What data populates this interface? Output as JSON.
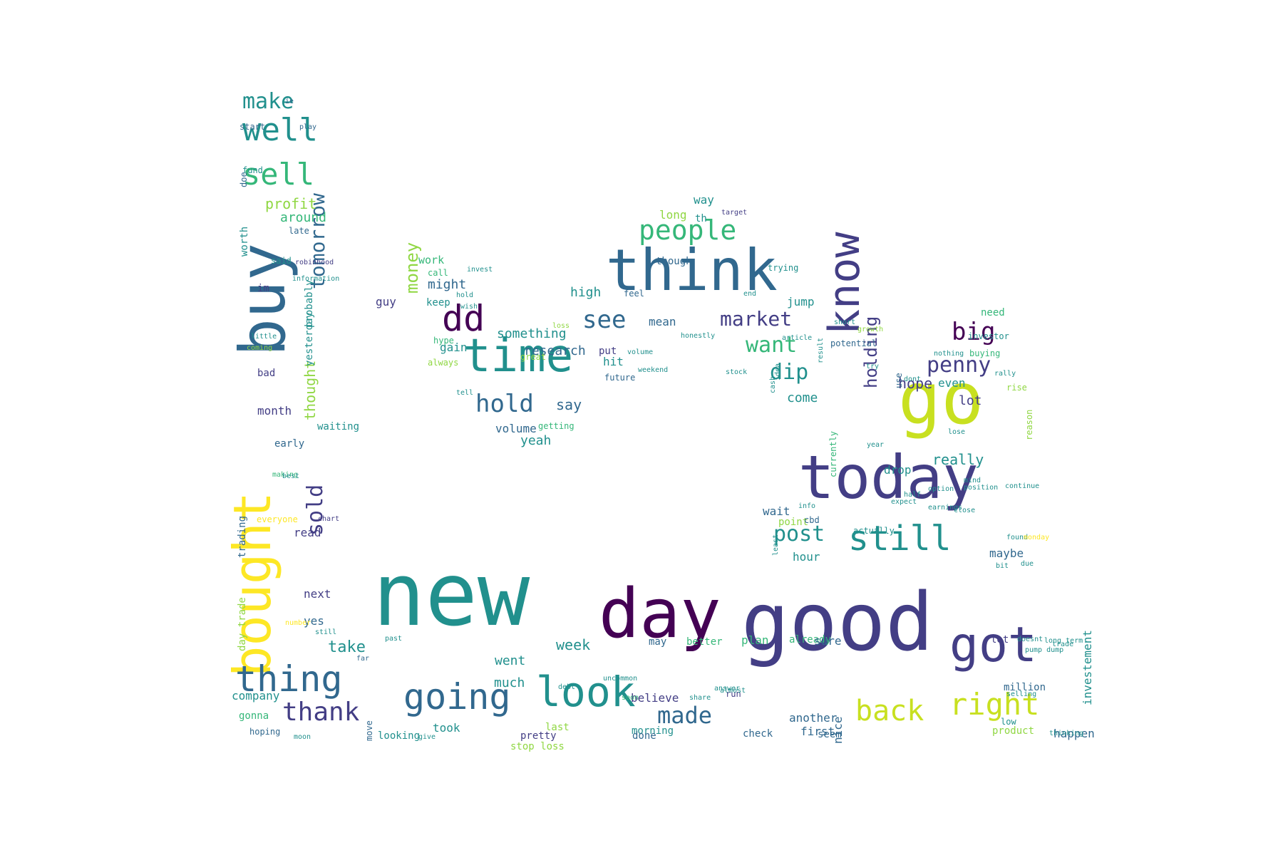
{
  "palette": {
    "dark_purple": "#440154",
    "indigo": "#433e85",
    "blue": "#31688e",
    "teal": "#21908d",
    "green": "#35b779",
    "light_green": "#90d743",
    "yellow": "#fde725",
    "lime": "#c8e020"
  },
  "words": [
    {
      "text": "new",
      "color": "teal"
    },
    {
      "text": "good",
      "color": "indigo"
    },
    {
      "text": "day",
      "color": "dark_purple"
    },
    {
      "text": "think",
      "color": "blue"
    },
    {
      "text": "go",
      "color": "lime"
    },
    {
      "text": "today",
      "color": "indigo"
    },
    {
      "text": "buy",
      "color": "blue"
    },
    {
      "text": "bought",
      "color": "yellow"
    },
    {
      "text": "time",
      "color": "teal"
    },
    {
      "text": "know",
      "color": "indigo"
    },
    {
      "text": "got",
      "color": "indigo"
    },
    {
      "text": "look",
      "color": "teal"
    },
    {
      "text": "dd",
      "color": "dark_purple"
    },
    {
      "text": "right",
      "color": "lime"
    },
    {
      "text": "back",
      "color": "lime"
    },
    {
      "text": "thing",
      "color": "blue"
    },
    {
      "text": "going",
      "color": "blue"
    },
    {
      "text": "still",
      "color": "teal"
    },
    {
      "text": "people",
      "color": "green"
    },
    {
      "text": "well",
      "color": "teal"
    },
    {
      "text": "sell",
      "color": "green"
    },
    {
      "text": "thank",
      "color": "indigo"
    },
    {
      "text": "made",
      "color": "blue"
    },
    {
      "text": "market",
      "color": "indigo"
    },
    {
      "text": "see",
      "color": "blue"
    },
    {
      "text": "hold",
      "color": "blue"
    },
    {
      "text": "tomorrow",
      "color": "blue"
    },
    {
      "text": "dip",
      "color": "teal"
    },
    {
      "text": "post",
      "color": "teal"
    },
    {
      "text": "big",
      "color": "dark_purple"
    },
    {
      "text": "penny",
      "color": "indigo"
    },
    {
      "text": "want",
      "color": "green"
    },
    {
      "text": "make",
      "color": "teal"
    },
    {
      "text": "money",
      "color": "light_green"
    },
    {
      "text": "sold",
      "color": "indigo"
    },
    {
      "text": "holding",
      "color": "indigo"
    },
    {
      "text": "profit",
      "color": "light_green"
    },
    {
      "text": "really",
      "color": "teal"
    },
    {
      "text": "week",
      "color": "teal"
    },
    {
      "text": "take",
      "color": "teal"
    },
    {
      "text": "hope",
      "color": "indigo"
    },
    {
      "text": "thought",
      "color": "light_green"
    },
    {
      "text": "lot",
      "color": "indigo"
    },
    {
      "text": "around",
      "color": "green"
    },
    {
      "text": "say",
      "color": "blue"
    },
    {
      "text": "yeah",
      "color": "teal"
    },
    {
      "text": "might",
      "color": "blue"
    },
    {
      "text": "something",
      "color": "teal"
    },
    {
      "text": "research",
      "color": "blue"
    },
    {
      "text": "much",
      "color": "teal"
    },
    {
      "text": "went",
      "color": "teal"
    },
    {
      "text": "come",
      "color": "teal"
    },
    {
      "text": "high",
      "color": "teal"
    },
    {
      "text": "guy",
      "color": "indigo"
    },
    {
      "text": "keep",
      "color": "teal"
    },
    {
      "text": "work",
      "color": "green"
    },
    {
      "text": "way",
      "color": "teal"
    },
    {
      "text": "long",
      "color": "light_green"
    },
    {
      "text": "th",
      "color": "teal"
    },
    {
      "text": "though",
      "color": "blue"
    },
    {
      "text": "jump",
      "color": "teal"
    },
    {
      "text": "mean",
      "color": "blue"
    },
    {
      "text": "gain",
      "color": "teal"
    },
    {
      "text": "hit",
      "color": "teal"
    },
    {
      "text": "put",
      "color": "indigo"
    },
    {
      "text": "volume",
      "color": "blue"
    },
    {
      "text": "even",
      "color": "teal"
    },
    {
      "text": "drop",
      "color": "teal"
    },
    {
      "text": "wait",
      "color": "blue"
    },
    {
      "text": "point",
      "color": "light_green"
    },
    {
      "text": "hour",
      "color": "teal"
    },
    {
      "text": "maybe",
      "color": "blue"
    },
    {
      "text": "read",
      "color": "indigo"
    },
    {
      "text": "next",
      "color": "indigo"
    },
    {
      "text": "yes",
      "color": "blue"
    },
    {
      "text": "month",
      "color": "indigo"
    },
    {
      "text": "bad",
      "color": "indigo"
    },
    {
      "text": "im",
      "color": "indigo"
    },
    {
      "text": "said",
      "color": "teal"
    },
    {
      "text": "late",
      "color": "blue"
    },
    {
      "text": "worth",
      "color": "teal"
    },
    {
      "text": "probably",
      "color": "teal"
    },
    {
      "text": "yesterday",
      "color": "teal"
    },
    {
      "text": "waiting",
      "color": "teal"
    },
    {
      "text": "early",
      "color": "blue"
    },
    {
      "text": "trading",
      "color": "blue"
    },
    {
      "text": "day trade",
      "color": "light_green"
    },
    {
      "text": "company",
      "color": "teal"
    },
    {
      "text": "gonna",
      "color": "green"
    },
    {
      "text": "hoping",
      "color": "blue"
    },
    {
      "text": "took",
      "color": "teal"
    },
    {
      "text": "looking",
      "color": "teal"
    },
    {
      "text": "believe",
      "color": "indigo"
    },
    {
      "text": "morning",
      "color": "teal"
    },
    {
      "text": "may",
      "color": "blue"
    },
    {
      "text": "better",
      "color": "green"
    },
    {
      "text": "plan",
      "color": "green"
    },
    {
      "text": "already",
      "color": "green"
    },
    {
      "text": "sure",
      "color": "blue"
    },
    {
      "text": "another",
      "color": "blue"
    },
    {
      "text": "first",
      "color": "blue"
    },
    {
      "text": "seem",
      "color": "blue"
    },
    {
      "text": "check",
      "color": "blue"
    },
    {
      "text": "nice",
      "color": "blue"
    },
    {
      "text": "run",
      "color": "indigo"
    },
    {
      "text": "done",
      "color": "blue"
    },
    {
      "text": "pretty",
      "color": "indigo"
    },
    {
      "text": "stop loss",
      "color": "light_green"
    },
    {
      "text": "last",
      "color": "light_green"
    },
    {
      "text": "let",
      "color": "indigo"
    },
    {
      "text": "million",
      "color": "blue"
    },
    {
      "text": "investement",
      "color": "teal"
    },
    {
      "text": "product",
      "color": "light_green"
    },
    {
      "text": "happen",
      "color": "blue"
    },
    {
      "text": "need",
      "color": "green"
    },
    {
      "text": "buying",
      "color": "green"
    },
    {
      "text": "investor",
      "color": "teal"
    },
    {
      "text": "use",
      "color": "blue"
    },
    {
      "text": "currently",
      "color": "green"
    },
    {
      "text": "actually",
      "color": "teal"
    },
    {
      "text": "cbd",
      "color": "blue"
    },
    {
      "text": "doe",
      "color": "blue"
    },
    {
      "text": "fund",
      "color": "teal"
    },
    {
      "text": "start",
      "color": "blue"
    },
    {
      "text": "everyone",
      "color": "yellow"
    },
    {
      "text": "call",
      "color": "green"
    },
    {
      "text": "future",
      "color": "blue"
    },
    {
      "text": "hype",
      "color": "green"
    },
    {
      "text": "always",
      "color": "light_green"
    },
    {
      "text": "getting",
      "color": "green"
    },
    {
      "text": "feel",
      "color": "blue"
    },
    {
      "text": "trying",
      "color": "teal"
    },
    {
      "text": "far",
      "color": "blue"
    },
    {
      "text": "move",
      "color": "blue"
    },
    {
      "text": "reason",
      "color": "light_green"
    },
    {
      "text": "rise",
      "color": "light_green"
    },
    {
      "text": "potential",
      "color": "blue"
    },
    {
      "text": "great",
      "color": "light_green"
    },
    {
      "text": "low",
      "color": "teal"
    },
    {
      "text": "ie",
      "color": "blue"
    },
    {
      "text": "play",
      "color": "blue"
    },
    {
      "text": "loss",
      "color": "light_green"
    },
    {
      "text": "invest",
      "color": "teal"
    },
    {
      "text": "information",
      "color": "teal"
    },
    {
      "text": "robinhood",
      "color": "indigo"
    },
    {
      "text": "little",
      "color": "teal"
    },
    {
      "text": "coming",
      "color": "light_green"
    },
    {
      "text": "making",
      "color": "green"
    },
    {
      "text": "best",
      "color": "teal"
    },
    {
      "text": "target",
      "color": "indigo"
    },
    {
      "text": "chart",
      "color": "indigo"
    },
    {
      "text": "number",
      "color": "yellow"
    },
    {
      "text": "still",
      "color": "teal"
    },
    {
      "text": "past",
      "color": "teal"
    },
    {
      "text": "debt",
      "color": "teal"
    },
    {
      "text": "soon",
      "color": "green"
    },
    {
      "text": "moon",
      "color": "teal"
    },
    {
      "text": "give",
      "color": "teal"
    },
    {
      "text": "selling",
      "color": "teal"
    },
    {
      "text": "thinking",
      "color": "teal"
    },
    {
      "text": "trade",
      "color": "teal"
    },
    {
      "text": "pump dump",
      "color": "teal"
    },
    {
      "text": "doesnt",
      "color": "teal"
    },
    {
      "text": "long term",
      "color": "teal"
    },
    {
      "text": "found",
      "color": "teal"
    },
    {
      "text": "monday",
      "color": "yellow"
    },
    {
      "text": "due",
      "color": "teal"
    },
    {
      "text": "bit",
      "color": "teal"
    },
    {
      "text": "continue",
      "color": "teal"
    },
    {
      "text": "mind",
      "color": "teal"
    },
    {
      "text": "least",
      "color": "teal"
    },
    {
      "text": "cash",
      "color": "teal"
    },
    {
      "text": "info",
      "color": "teal"
    },
    {
      "text": "idea",
      "color": "teal"
    },
    {
      "text": "try",
      "color": "teal"
    },
    {
      "text": "dont",
      "color": "teal"
    },
    {
      "text": "growth",
      "color": "light_green"
    },
    {
      "text": "result",
      "color": "teal"
    },
    {
      "text": "article",
      "color": "teal"
    },
    {
      "text": "honestly",
      "color": "teal"
    },
    {
      "text": "almost",
      "color": "teal"
    },
    {
      "text": "answer",
      "color": "teal"
    },
    {
      "text": "share",
      "color": "teal"
    },
    {
      "text": "uncommon",
      "color": "teal"
    },
    {
      "text": "close",
      "color": "teal"
    },
    {
      "text": "short",
      "color": "teal"
    },
    {
      "text": "tell",
      "color": "teal"
    },
    {
      "text": "volume",
      "color": "teal"
    },
    {
      "text": "weekend",
      "color": "teal"
    },
    {
      "text": "hold",
      "color": "teal"
    },
    {
      "text": "wish",
      "color": "teal"
    },
    {
      "text": "end",
      "color": "teal"
    },
    {
      "text": "stock",
      "color": "teal"
    },
    {
      "text": "year",
      "color": "teal"
    },
    {
      "text": "expect",
      "color": "teal"
    },
    {
      "text": "half",
      "color": "teal"
    },
    {
      "text": "option",
      "color": "teal"
    },
    {
      "text": "earnings",
      "color": "teal"
    },
    {
      "text": "lose",
      "color": "teal"
    },
    {
      "text": "rally",
      "color": "teal"
    },
    {
      "text": "nothing",
      "color": "teal"
    },
    {
      "text": "position",
      "color": "teal"
    },
    {
      "text": "open",
      "color": "teal"
    },
    {
      "text": "total",
      "color": "teal"
    },
    {
      "text": "thread",
      "color": "teal"
    },
    {
      "text": "live",
      "color": "teal"
    },
    {
      "text": "dump",
      "color": "teal"
    }
  ]
}
